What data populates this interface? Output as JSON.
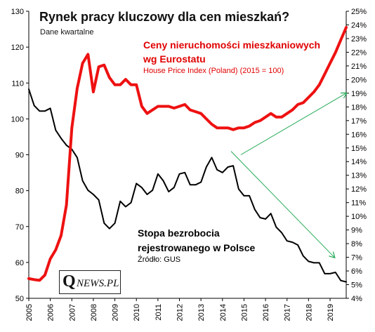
{
  "chart_data": {
    "type": "line",
    "title": "Rynek pracy kluczowy dla cen mieszkań?",
    "subtitle": "Dane kwartalne",
    "x_ticks": [
      "2005",
      "2006",
      "2007",
      "2008",
      "2009",
      "2010",
      "2011",
      "2012",
      "2013",
      "2014",
      "2015",
      "2016",
      "2017",
      "2018",
      "2019"
    ],
    "x_range": [
      2005,
      2019.75
    ],
    "y_left": {
      "range": [
        50,
        130
      ],
      "ticks": [
        "50",
        "60",
        "70",
        "80",
        "90",
        "100",
        "110",
        "120",
        "130"
      ]
    },
    "y_right": {
      "range": [
        4,
        25
      ],
      "ticks": [
        "4%",
        "5%",
        "6%",
        "7%",
        "8%",
        "9%",
        "10%",
        "11%",
        "12%",
        "13%",
        "14%",
        "15%",
        "16%",
        "17%",
        "18%",
        "19%",
        "20%",
        "21%",
        "22%",
        "23%",
        "24%",
        "25%"
      ]
    },
    "series": [
      {
        "name": "Ceny nieruchomości mieszkaniowych wg Eurostatu",
        "description": "House Price Index (Poland) (2015 = 100)",
        "axis": "left",
        "color": "#ee1111",
        "x": [
          2005.0,
          2005.25,
          2005.5,
          2005.75,
          2006.0,
          2006.25,
          2006.5,
          2006.75,
          2007.0,
          2007.25,
          2007.5,
          2007.75,
          2008.0,
          2008.25,
          2008.5,
          2008.75,
          2009.0,
          2009.25,
          2009.5,
          2009.75,
          2010.0,
          2010.25,
          2010.5,
          2010.75,
          2011.0,
          2011.25,
          2011.5,
          2011.75,
          2012.0,
          2012.25,
          2012.5,
          2012.75,
          2013.0,
          2013.25,
          2013.5,
          2013.75,
          2014.0,
          2014.25,
          2014.5,
          2014.75,
          2015.0,
          2015.25,
          2015.5,
          2015.75,
          2016.0,
          2016.25,
          2016.5,
          2016.75,
          2017.0,
          2017.25,
          2017.5,
          2017.75,
          2018.0,
          2018.25,
          2018.5,
          2018.75,
          2019.0,
          2019.25,
          2019.5,
          2019.75
        ],
        "values": [
          55.5,
          55.2,
          55.0,
          56.5,
          61.0,
          63.5,
          67.5,
          76.0,
          97.5,
          108.5,
          115.5,
          118.0,
          107.5,
          114.5,
          115.0,
          111.5,
          109.5,
          109.5,
          111.0,
          109.5,
          109.5,
          103.5,
          101.5,
          102.5,
          103.5,
          103.5,
          103.5,
          103.0,
          103.5,
          104.0,
          102.5,
          102.0,
          101.5,
          100.0,
          98.5,
          97.5,
          97.5,
          97.5,
          97.0,
          97.5,
          97.5,
          98.0,
          99.0,
          99.5,
          100.5,
          101.5,
          100.5,
          100.5,
          101.5,
          102.5,
          104.0,
          104.5,
          106.0,
          107.5,
          109.5,
          112.5,
          115.5,
          118.5,
          122.0,
          125.5
        ]
      },
      {
        "name": "Stopa bezrobocia rejestrowanego w Polsce",
        "source": "Źródło: GUS",
        "axis": "right",
        "color": "#000000",
        "x": [
          2005.0,
          2005.25,
          2005.5,
          2005.75,
          2006.0,
          2006.25,
          2006.5,
          2006.75,
          2007.0,
          2007.25,
          2007.5,
          2007.75,
          2008.0,
          2008.25,
          2008.5,
          2008.75,
          2009.0,
          2009.25,
          2009.5,
          2009.75,
          2010.0,
          2010.25,
          2010.5,
          2010.75,
          2011.0,
          2011.25,
          2011.5,
          2011.75,
          2012.0,
          2012.25,
          2012.5,
          2012.75,
          2013.0,
          2013.25,
          2013.5,
          2013.75,
          2014.0,
          2014.25,
          2014.5,
          2014.75,
          2015.0,
          2015.25,
          2015.5,
          2015.75,
          2016.0,
          2016.25,
          2016.5,
          2016.75,
          2017.0,
          2017.25,
          2017.5,
          2017.75,
          2018.0,
          2018.25,
          2018.5,
          2018.75,
          2019.0,
          2019.25,
          2019.5,
          2019.75
        ],
        "values": [
          19.3,
          18.1,
          17.7,
          17.7,
          17.9,
          16.3,
          15.7,
          15.2,
          14.9,
          14.3,
          12.6,
          11.9,
          11.6,
          11.2,
          9.5,
          9.1,
          9.5,
          11.1,
          10.7,
          11.0,
          12.4,
          12.1,
          11.6,
          11.9,
          13.1,
          12.6,
          11.8,
          12.1,
          13.1,
          13.2,
          12.3,
          12.3,
          12.5,
          13.6,
          14.3,
          13.4,
          13.2,
          13.6,
          13.7,
          12.0,
          11.5,
          11.5,
          10.5,
          9.9,
          9.8,
          10.2,
          9.2,
          8.8,
          8.2,
          8.1,
          7.9,
          7.1,
          6.7,
          6.6,
          6.6,
          5.8,
          5.8,
          5.9,
          5.3,
          5.2
        ]
      }
    ],
    "labels": {
      "red_line1": "Ceny nieruchomości mieszkaniowych",
      "red_line2": "wg Eurostatu",
      "red_sub": "House Price Index (Poland) (2015 = 100)",
      "black_line1": "Stopa bezrobocia",
      "black_line2": "rejestrowanego w Polsce",
      "source": "Źródło: GUS"
    },
    "annotations": [
      {
        "type": "arrow",
        "color": "#22aa55",
        "from": [
          2014.85,
          14.5
        ],
        "to": [
          2019.75,
          19.0
        ]
      },
      {
        "type": "arrow",
        "color": "#22aa55",
        "from": [
          2014.4,
          14.75
        ],
        "to": [
          2019.2,
          7.0
        ]
      }
    ],
    "grid": false
  },
  "logo": {
    "q": "Q",
    "rest": "NEWS.PL"
  },
  "colors": {
    "red": "#ee1111",
    "black": "#000000",
    "arrow": "#22aa55"
  }
}
